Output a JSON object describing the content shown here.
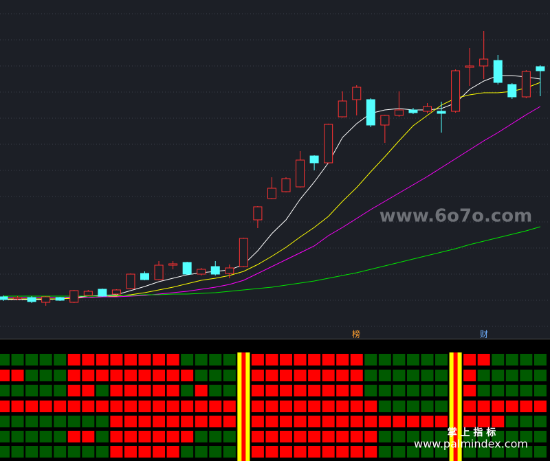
{
  "chart_data": {
    "type": "candlestick",
    "ylim": [
      0,
      493
    ],
    "open": [
      61,
      58,
      60,
      53,
      60,
      53,
      63,
      72,
      65,
      73,
      95,
      86,
      107,
      111,
      94,
      105,
      95,
      105,
      173,
      204,
      214,
      221,
      266,
      256,
      323,
      348,
      348,
      311,
      325,
      333,
      331,
      331,
      331,
      395,
      397,
      405,
      370,
      352,
      396
    ],
    "high": [
      63,
      62,
      62,
      62,
      61,
      71,
      71,
      73,
      72,
      95,
      98,
      113,
      113,
      112,
      103,
      113,
      108,
      147,
      193,
      235,
      235,
      273,
      267,
      313,
      360,
      369,
      350,
      326,
      360,
      336,
      343,
      345,
      392,
      423,
      448,
      413,
      372,
      391,
      398
    ],
    "low": [
      55,
      56,
      52,
      48,
      55,
      52,
      62,
      61,
      64,
      72,
      85,
      85,
      101,
      93,
      92,
      92,
      88,
      104,
      161,
      203,
      213,
      220,
      245,
      255,
      322,
      325,
      308,
      285,
      323,
      327,
      328,
      300,
      329,
      368,
      378,
      370,
      349,
      350,
      353
    ],
    "close": [
      57,
      60,
      54,
      61,
      56,
      70,
      69,
      62,
      71,
      94,
      86,
      107,
      109,
      94,
      101,
      94,
      103,
      146,
      192,
      219,
      233,
      260,
      256,
      312,
      346,
      366,
      311,
      325,
      333,
      329,
      338,
      328,
      390,
      397,
      407,
      373,
      352,
      389,
      390
    ],
    "up_color": "#ff3232",
    "down_color": "#54ffff",
    "lines": [
      {
        "color": "#ffffff",
        "values": [
          57,
          57,
          57,
          57,
          58,
          60,
          62,
          63,
          64,
          70,
          76,
          83,
          88,
          93,
          96,
          98,
          100,
          108,
          128,
          153,
          173,
          203,
          228,
          256,
          293,
          313,
          328,
          333,
          335,
          333,
          333,
          335,
          343,
          363,
          375,
          383,
          383,
          381,
          378
        ]
      },
      {
        "color": "#ffff00",
        "values": [
          58,
          58,
          58,
          58,
          58,
          59,
          60,
          61,
          62,
          64,
          67,
          71,
          75,
          80,
          85,
          88,
          92,
          98,
          108,
          120,
          133,
          148,
          162,
          178,
          200,
          220,
          243,
          265,
          288,
          310,
          325,
          340,
          350,
          355,
          358,
          358,
          360,
          365,
          373
        ]
      },
      {
        "color": "#ff00ff",
        "values": [
          60,
          60,
          60,
          60,
          60,
          60,
          60,
          61,
          61,
          62,
          63,
          65,
          67,
          69,
          72,
          75,
          79,
          85,
          95,
          105,
          115,
          125,
          135,
          150,
          162,
          175,
          188,
          200,
          212,
          224,
          236,
          249,
          262,
          275,
          288,
          300,
          313,
          326,
          338
        ]
      },
      {
        "color": "#00e600",
        "values": [
          62,
          62,
          62,
          62,
          62,
          62,
          62,
          62,
          63,
          63,
          64,
          64,
          65,
          65,
          66,
          67,
          69,
          71,
          73,
          75,
          78,
          81,
          84,
          88,
          92,
          96,
          101,
          106,
          111,
          116,
          121,
          126,
          131,
          137,
          142,
          147,
          152,
          157,
          163
        ]
      }
    ],
    "markers": [
      "榜",
      "财"
    ],
    "indicator_rows": [
      [
        0,
        0,
        0,
        0,
        0,
        1,
        1,
        1,
        1,
        1,
        1,
        1,
        1,
        0,
        0,
        0,
        0,
        0,
        1,
        1,
        1,
        1,
        1,
        1,
        1,
        1,
        0,
        0,
        0,
        0,
        0,
        0,
        0,
        1,
        1,
        0,
        0,
        0,
        0
      ],
      [
        1,
        1,
        0,
        0,
        0,
        1,
        1,
        1,
        1,
        1,
        1,
        1,
        1,
        1,
        0,
        0,
        0,
        0,
        1,
        1,
        1,
        1,
        1,
        1,
        1,
        1,
        0,
        0,
        0,
        0,
        0,
        0,
        0,
        1,
        0,
        0,
        0,
        0,
        0
      ],
      [
        0,
        0,
        0,
        0,
        0,
        1,
        1,
        0,
        1,
        1,
        1,
        1,
        1,
        0,
        1,
        0,
        0,
        0,
        1,
        1,
        1,
        1,
        1,
        1,
        1,
        1,
        0,
        0,
        0,
        0,
        0,
        0,
        0,
        1,
        0,
        0,
        0,
        0,
        0
      ],
      [
        1,
        1,
        1,
        1,
        1,
        1,
        1,
        1,
        1,
        1,
        1,
        1,
        1,
        1,
        1,
        1,
        1,
        0,
        1,
        1,
        1,
        1,
        1,
        1,
        1,
        1,
        1,
        0,
        0,
        0,
        0,
        0,
        0,
        1,
        1,
        1,
        1,
        1,
        1
      ],
      [
        0,
        0,
        0,
        0,
        0,
        0,
        0,
        0,
        1,
        1,
        1,
        1,
        1,
        1,
        1,
        1,
        1,
        0,
        1,
        1,
        1,
        1,
        1,
        1,
        1,
        1,
        1,
        1,
        1,
        1,
        1,
        1,
        0,
        1,
        1,
        1,
        0,
        0,
        0
      ],
      [
        0,
        0,
        0,
        0,
        0,
        1,
        1,
        0,
        1,
        1,
        1,
        1,
        1,
        1,
        0,
        0,
        0,
        0,
        1,
        1,
        1,
        1,
        1,
        1,
        1,
        1,
        1,
        0,
        0,
        0,
        0,
        0,
        0,
        0,
        0,
        0,
        0,
        0,
        0
      ],
      [
        0,
        0,
        0,
        0,
        0,
        0,
        0,
        0,
        1,
        1,
        1,
        1,
        1,
        0,
        0,
        0,
        0,
        0,
        1,
        1,
        1,
        1,
        1,
        1,
        1,
        1,
        1,
        0,
        0,
        0,
        0,
        0,
        0,
        0,
        0,
        0,
        0,
        0,
        0
      ]
    ],
    "on_color": "#ff0000",
    "off_color": "#005a00",
    "signals": [
      17,
      32
    ]
  },
  "watermarks": [
    "www.6o7o.com",
    "掌 上 指 标",
    "www.palmindex.com"
  ]
}
